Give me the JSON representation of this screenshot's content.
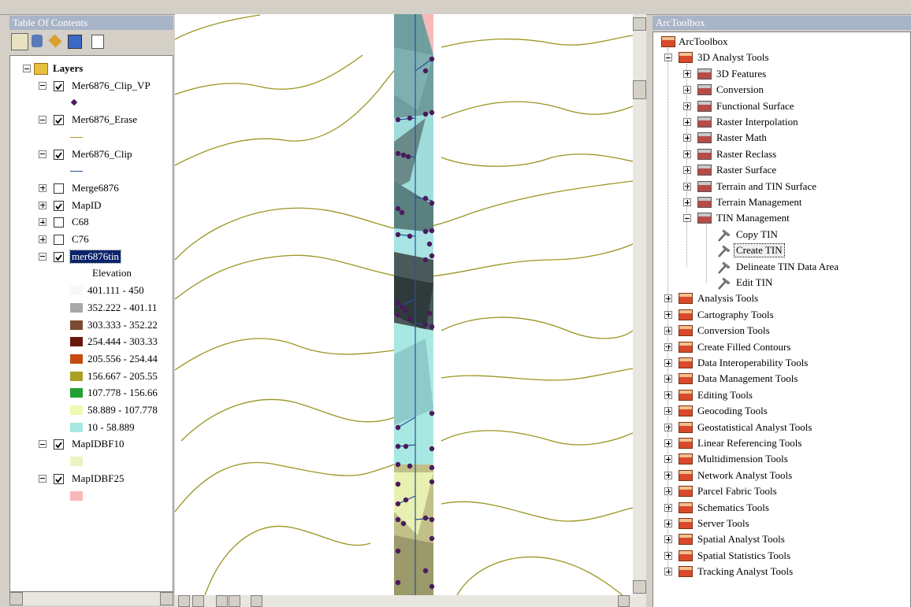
{
  "toc": {
    "title": "Table Of Contents",
    "root": "Layers",
    "layers": [
      {
        "name": "Mer6876_Clip_VP",
        "checked": true,
        "expanded": true,
        "symbol": {
          "kind": "point",
          "color": "#4b1a5e"
        }
      },
      {
        "name": "Mer6876_Erase",
        "checked": true,
        "expanded": true,
        "symbol": {
          "kind": "line",
          "color": "#a89a28"
        }
      },
      {
        "name": "Mer6876_Clip",
        "checked": true,
        "expanded": true,
        "symbol": {
          "kind": "line",
          "color": "#2a4f9a"
        }
      },
      {
        "name": "Merge6876",
        "checked": false,
        "expanded": false
      },
      {
        "name": "MapID",
        "checked": true,
        "expanded": false
      },
      {
        "name": "C68",
        "checked": false,
        "expanded": false
      },
      {
        "name": "C76",
        "checked": false,
        "expanded": false
      },
      {
        "name": "mer6876tin",
        "checked": true,
        "expanded": true,
        "selected": true,
        "heading": "Elevation",
        "classes": [
          {
            "label": "401.111 - 450",
            "color": "#f7f7f7"
          },
          {
            "label": "352.222 - 401.11",
            "color": "#a9a9a9"
          },
          {
            "label": "303.333 - 352.22",
            "color": "#7b4b2f"
          },
          {
            "label": "254.444 - 303.33",
            "color": "#661a0b"
          },
          {
            "label": "205.556 - 254.44",
            "color": "#c64b12"
          },
          {
            "label": "156.667 - 205.55",
            "color": "#a8a022"
          },
          {
            "label": "107.778 - 156.66",
            "color": "#22a032"
          },
          {
            "label": "58.889 - 107.778",
            "color": "#f0f8b2"
          },
          {
            "label": "10 - 58.889",
            "color": "#a8e8e2"
          }
        ]
      },
      {
        "name": "MapIDBF10",
        "checked": true,
        "expanded": true,
        "symbol": {
          "kind": "fill",
          "color": "#eaf5c2"
        }
      },
      {
        "name": "MapIDBF25",
        "checked": true,
        "expanded": true,
        "symbol": {
          "kind": "fill",
          "color": "#f8b8b8"
        }
      }
    ]
  },
  "toolbox": {
    "title": "ArcToolbox",
    "root": "ArcToolbox",
    "items": [
      {
        "name": "3D Analyst Tools",
        "expanded": true,
        "children": [
          {
            "name": "3D Features"
          },
          {
            "name": "Conversion"
          },
          {
            "name": "Functional Surface"
          },
          {
            "name": "Raster Interpolation"
          },
          {
            "name": "Raster Math"
          },
          {
            "name": "Raster Reclass"
          },
          {
            "name": "Raster Surface"
          },
          {
            "name": "Terrain and TIN Surface"
          },
          {
            "name": "Terrain Management"
          },
          {
            "name": "TIN Management",
            "expanded": true,
            "tools": [
              {
                "name": "Copy TIN"
              },
              {
                "name": "Create TIN",
                "selected": true
              },
              {
                "name": "Delineate TIN Data Area"
              },
              {
                "name": "Edit TIN"
              }
            ]
          }
        ]
      },
      {
        "name": "Analysis Tools"
      },
      {
        "name": "Cartography Tools"
      },
      {
        "name": "Conversion Tools"
      },
      {
        "name": "Create Filled Contours"
      },
      {
        "name": "Data Interoperability Tools"
      },
      {
        "name": "Data Management Tools"
      },
      {
        "name": "Editing Tools"
      },
      {
        "name": "Geocoding Tools"
      },
      {
        "name": "Geostatistical Analyst Tools"
      },
      {
        "name": "Linear Referencing Tools"
      },
      {
        "name": "Multidimension Tools"
      },
      {
        "name": "Network Analyst Tools"
      },
      {
        "name": "Parcel Fabric Tools"
      },
      {
        "name": "Schematics Tools"
      },
      {
        "name": "Server Tools"
      },
      {
        "name": "Spatial Analyst Tools"
      },
      {
        "name": "Spatial Statistics Tools"
      },
      {
        "name": "Tracking Analyst Tools"
      }
    ]
  }
}
